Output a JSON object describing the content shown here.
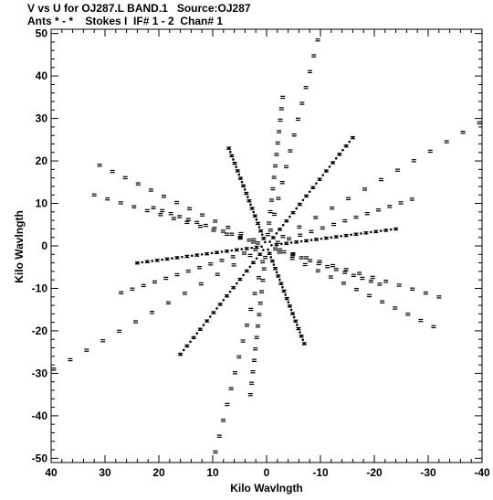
{
  "header": {
    "title_line1": "V vs U for OJ287.L BAND.1   Source:OJ287",
    "title_line2": "Ants * - *    Stokes I  IF# 1 - 2  Chan# 1"
  },
  "chart_data": {
    "type": "scatter",
    "title": "V vs U for OJ287.L BAND.1   Source:OJ287",
    "subtitle": "Ants * - *    Stokes I  IF# 1 - 2  Chan# 1",
    "xlabel": "Kilo Wavlngth",
    "ylabel": "Kilo Wavlngth",
    "xlim": [
      40,
      -40
    ],
    "ylim": [
      -51,
      51
    ],
    "x_reversed": true,
    "grid": false,
    "legend": "none",
    "x_ticks": [
      40,
      30,
      20,
      10,
      0,
      -10,
      -20,
      -30,
      -40
    ],
    "x_tick_labels": [
      "40",
      "30",
      "20",
      "10",
      "0",
      "-10",
      "-20",
      "-30",
      "-40"
    ],
    "y_ticks": [
      50,
      40,
      30,
      20,
      10,
      0,
      -10,
      -20,
      -30,
      -40,
      -50
    ],
    "y_tick_labels": [
      "50",
      "40",
      "30",
      "20",
      "10",
      "0",
      "-10",
      "-20",
      "-30",
      "-40",
      "-50"
    ],
    "baseline_endpoints": [
      {
        "u": -39.5,
        "v": 29.0
      },
      {
        "u": 39.5,
        "v": -29.0
      },
      {
        "u": -9.5,
        "v": 48.5
      },
      {
        "u": 9.5,
        "v": -48.5
      },
      {
        "u": -16.0,
        "v": 25.5
      },
      {
        "u": 16.0,
        "v": -25.5
      },
      {
        "u": 31.0,
        "v": 19.0
      },
      {
        "u": -31.0,
        "v": -19.0
      },
      {
        "u": 7.0,
        "v": 23.0
      },
      {
        "u": -7.0,
        "v": -23.0
      },
      {
        "u": -24.0,
        "v": 4.0
      },
      {
        "u": 24.0,
        "v": -4.0
      },
      {
        "u": 32.0,
        "v": 12.0
      },
      {
        "u": -32.0,
        "v": -12.0
      },
      {
        "u": -27.0,
        "v": 11.0
      },
      {
        "u": 27.0,
        "v": -11.0
      },
      {
        "u": 21.0,
        "v": 9.0
      },
      {
        "u": -21.0,
        "v": -9.0
      },
      {
        "u": -3.0,
        "v": 35.0
      },
      {
        "u": 3.0,
        "v": -35.0
      }
    ],
    "points_per_track": 13,
    "color": "#000000"
  }
}
